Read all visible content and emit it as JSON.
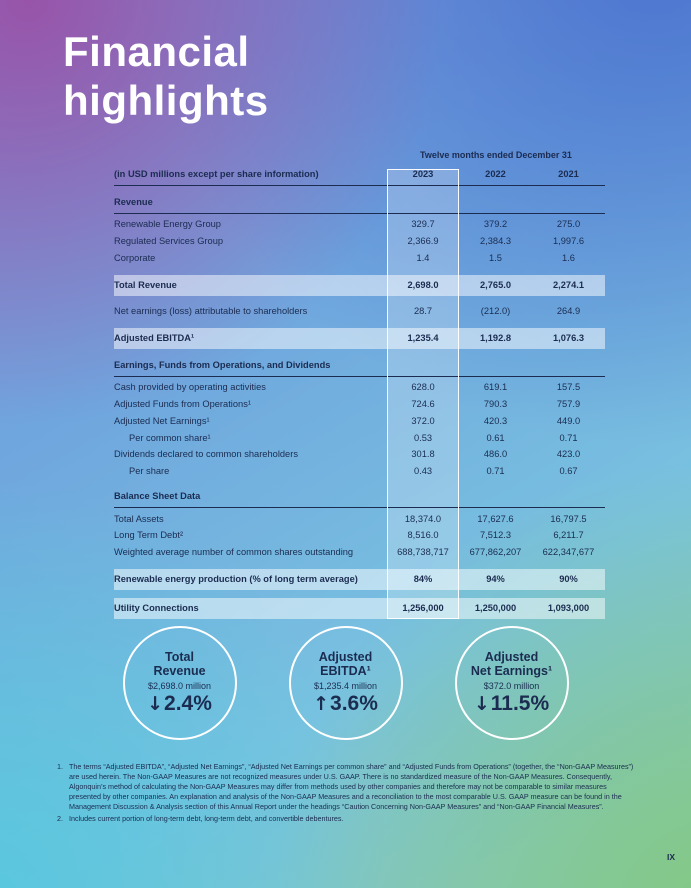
{
  "header": {
    "title_line1": "Financial",
    "title_line2": "highlights"
  },
  "table": {
    "period_header": "Twelve months ended December 31",
    "label_header": "(in USD millions except per share information)",
    "year_headers": [
      "2023",
      "2022",
      "2021"
    ],
    "rows": [
      {
        "type": "section",
        "label": "Revenue"
      },
      {
        "type": "data",
        "label": "Renewable Energy Group",
        "values": [
          "329.7",
          "379.2",
          "275.0"
        ]
      },
      {
        "type": "data",
        "label": "Regulated Services Group",
        "values": [
          "2,366.9",
          "2,384.3",
          "1,997.6"
        ]
      },
      {
        "type": "data",
        "label": "Corporate",
        "values": [
          "1.4",
          "1.5",
          "1.6"
        ]
      },
      {
        "type": "highlight",
        "label": "Total Revenue",
        "values": [
          "2,698.0",
          "2,765.0",
          "2,274.1"
        ]
      },
      {
        "type": "data",
        "label": "Net earnings (loss) attributable to shareholders",
        "values": [
          "28.7",
          "(212.0)",
          "264.9"
        ]
      },
      {
        "type": "highlight",
        "label": "Adjusted EBITDA¹",
        "values": [
          "1,235.4",
          "1,192.8",
          "1,076.3"
        ]
      },
      {
        "type": "section",
        "label": "Earnings, Funds from Operations, and Dividends"
      },
      {
        "type": "data",
        "label": "Cash provided by operating activities",
        "values": [
          "628.0",
          "619.1",
          "157.5"
        ]
      },
      {
        "type": "data",
        "label": "Adjusted Funds from Operations¹",
        "values": [
          "724.6",
          "790.3",
          "757.9"
        ]
      },
      {
        "type": "data",
        "label": "Adjusted Net Earnings¹",
        "values": [
          "372.0",
          "420.3",
          "449.0"
        ]
      },
      {
        "type": "data",
        "indent": true,
        "label": "Per common share¹",
        "values": [
          "0.53",
          "0.61",
          "0.71"
        ]
      },
      {
        "type": "data",
        "label": "Dividends declared to common shareholders",
        "values": [
          "301.8",
          "486.0",
          "423.0"
        ]
      },
      {
        "type": "data",
        "indent": true,
        "label": "Per share",
        "values": [
          "0.43",
          "0.71",
          "0.67"
        ]
      },
      {
        "type": "section",
        "label": "Balance Sheet Data"
      },
      {
        "type": "data",
        "label": "Total Assets",
        "values": [
          "18,374.0",
          "17,627.6",
          "16,797.5"
        ]
      },
      {
        "type": "data",
        "label": "Long Term Debt²",
        "values": [
          "8,516.0",
          "7,512.3",
          "6,211.7"
        ]
      },
      {
        "type": "data",
        "label": "Weighted average number of common shares outstanding",
        "values": [
          "688,738,717",
          "677,862,207",
          "622,347,677"
        ]
      },
      {
        "type": "highlight",
        "label": "Renewable energy production (% of long term average)",
        "values": [
          "84%",
          "94%",
          "90%"
        ]
      },
      {
        "type": "highlight",
        "label": "Utility Connections",
        "values": [
          "1,256,000",
          "1,250,000",
          "1,093,000"
        ]
      }
    ]
  },
  "metrics": [
    {
      "title": "Total\nRevenue",
      "value": "$2,698.0 million",
      "direction": "down",
      "percent": "2.4%"
    },
    {
      "title": "Adjusted\nEBITDA¹",
      "value": "$1,235.4 million",
      "direction": "up",
      "percent": "3.6%"
    },
    {
      "title": "Adjusted\nNet Earnings¹",
      "value": "$372.0 million",
      "direction": "down",
      "percent": "11.5%"
    }
  ],
  "footnotes": [
    {
      "num": "1.",
      "text": "The terms “Adjusted EBITDA”, “Adjusted Net Earnings”, “Adjusted Net Earnings per common share” and “Adjusted Funds from Operations” (together, the “Non-GAAP Measures”) are used herein. The Non-GAAP Measures are not recognized measures under U.S. GAAP. There is no standardized measure of the Non-GAAP Measures. Consequently, Algonquin’s method of calculating the Non-GAAP Measures may differ from methods used by other companies and therefore may not be comparable to similar measures presented by other companies. An explanation and analysis of the Non-GAAP Measures and a reconciliation to the most comparable U.S. GAAP measure can be found in the Management Discussion & Analysis section of this Annual Report under the headings “Caution Concerning Non-GAAP Measures” and “Non-GAAP Financial Measures”."
    },
    {
      "num": "2.",
      "text": "Includes current portion of long-term debt, long-term debt, and convertible debentures."
    }
  ],
  "footer": {
    "page_number": "IX"
  },
  "colors": {
    "text_navy": "#1b2c50",
    "gradient_purple": "#9a4fa5",
    "gradient_blue": "#4870ce",
    "gradient_cyan": "#55c8dd",
    "gradient_green": "#83c883",
    "highlight_row": "rgba(255,255,255,0.5)"
  }
}
